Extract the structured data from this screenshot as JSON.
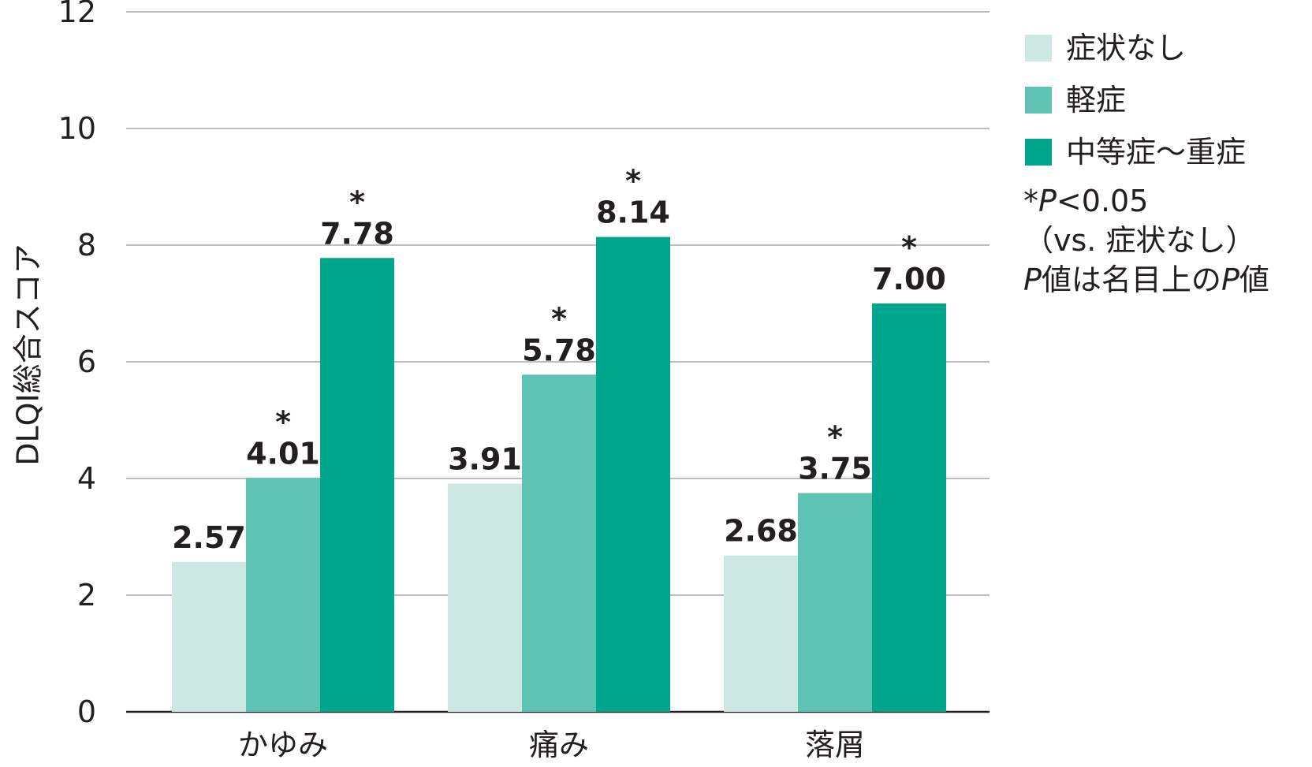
{
  "chart_data": {
    "type": "bar",
    "ylabel": "DLQI総合スコア",
    "xlabel": "",
    "ylim": [
      0,
      12
    ],
    "yticks": [
      "0",
      "2",
      "4",
      "6",
      "8",
      "10",
      "12"
    ],
    "grid": true,
    "legend_position": "right",
    "categories": [
      "かゆみ",
      "痛み",
      "落屑"
    ],
    "series": [
      {
        "name": "症状なし",
        "color": "#cde8e2",
        "values": [
          2.57,
          3.91,
          2.68
        ],
        "labels": [
          "2.57",
          "3.91",
          "2.68"
        ],
        "significant": [
          false,
          false,
          false
        ]
      },
      {
        "name": "軽症",
        "color": "#5fc3b3",
        "values": [
          4.01,
          5.78,
          3.75
        ],
        "labels": [
          "4.01",
          "5.78",
          "3.75"
        ],
        "significant": [
          true,
          true,
          true
        ]
      },
      {
        "name": "中等症～重症",
        "color": "#00a68c",
        "values": [
          7.78,
          8.14,
          7.0
        ],
        "labels": [
          "7.78",
          "8.14",
          "7.00"
        ],
        "significant": [
          true,
          true,
          true
        ]
      }
    ],
    "significance_marker": "*"
  },
  "note": {
    "star": "*",
    "p_symbol": "P",
    "p_threshold": "<0.05",
    "vs_text": "（vs. 症状なし）",
    "nominal_p": "P",
    "nominal_mid": "値は名目上の",
    "nominal_p2": "P",
    "nominal_end": "値"
  }
}
